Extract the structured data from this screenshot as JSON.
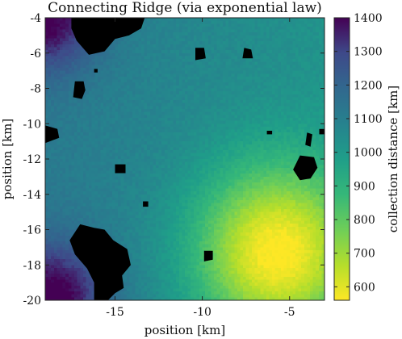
{
  "chart_data": {
    "type": "heatmap",
    "title": "Connecting Ridge (via exponential law)",
    "xlabel": "position [km]",
    "ylabel": "position [km]",
    "xlim": [
      -19,
      -3
    ],
    "ylim": [
      -20,
      -4
    ],
    "x_ticks": [
      {
        "value": -15,
        "label": "-15"
      },
      {
        "value": -10,
        "label": "-10"
      },
      {
        "value": -5,
        "label": "-5"
      }
    ],
    "y_ticks": [
      {
        "value": -4,
        "label": "-4"
      },
      {
        "value": -6,
        "label": "-6"
      },
      {
        "value": -8,
        "label": "-8"
      },
      {
        "value": -10,
        "label": "-10"
      },
      {
        "value": -12,
        "label": "-12"
      },
      {
        "value": -14,
        "label": "-14"
      },
      {
        "value": -16,
        "label": "-16"
      },
      {
        "value": -18,
        "label": "-18"
      },
      {
        "value": -20,
        "label": "-20"
      }
    ],
    "colorbar": {
      "label": "collection distance [km]",
      "range": [
        560,
        1400
      ],
      "ticks": [
        {
          "value": 600,
          "label": "600"
        },
        {
          "value": 700,
          "label": "700"
        },
        {
          "value": 800,
          "label": "800"
        },
        {
          "value": 900,
          "label": "900"
        },
        {
          "value": 1000,
          "label": "1000"
        },
        {
          "value": 1100,
          "label": "1100"
        },
        {
          "value": 1200,
          "label": "1200"
        },
        {
          "value": 1300,
          "label": "1300"
        },
        {
          "value": 1400,
          "label": "1400"
        }
      ]
    },
    "field": {
      "background_km": 1070,
      "minimum": {
        "x": -5.8,
        "y": -17.3,
        "value_km": 580
      },
      "maxima": [
        {
          "x": -19.0,
          "y": -4.0,
          "value_km": 1380
        },
        {
          "x": -18.5,
          "y": -19.8,
          "value_km": 1390
        }
      ]
    },
    "missing_data_regions": [
      [
        [
          -17.5,
          -4.0
        ],
        [
          -13.3,
          -4.0
        ],
        [
          -13.5,
          -4.6
        ],
        [
          -14.2,
          -5.0
        ],
        [
          -15.0,
          -5.2
        ],
        [
          -15.6,
          -5.9
        ],
        [
          -16.5,
          -6.1
        ],
        [
          -17.2,
          -5.3
        ],
        [
          -17.5,
          -4.6
        ]
      ],
      [
        [
          -17.3,
          -7.6
        ],
        [
          -16.8,
          -7.6
        ],
        [
          -16.7,
          -8.1
        ],
        [
          -16.9,
          -8.6
        ],
        [
          -17.4,
          -8.5
        ]
      ],
      [
        [
          -19.0,
          -10.1
        ],
        [
          -18.3,
          -10.3
        ],
        [
          -18.2,
          -10.8
        ],
        [
          -19.0,
          -11.1
        ]
      ],
      [
        [
          -17.0,
          -15.7
        ],
        [
          -16.2,
          -15.9
        ],
        [
          -15.6,
          -16.0
        ],
        [
          -15.1,
          -16.6
        ],
        [
          -14.3,
          -17.1
        ],
        [
          -14.1,
          -18.0
        ],
        [
          -14.6,
          -18.6
        ],
        [
          -14.5,
          -19.3
        ],
        [
          -15.0,
          -19.6
        ],
        [
          -15.4,
          -20.0
        ],
        [
          -16.2,
          -20.0
        ],
        [
          -16.2,
          -19.0
        ],
        [
          -16.6,
          -18.2
        ],
        [
          -17.3,
          -17.4
        ],
        [
          -17.6,
          -16.6
        ]
      ],
      [
        [
          -15.0,
          -12.3
        ],
        [
          -14.4,
          -12.3
        ],
        [
          -14.4,
          -12.8
        ],
        [
          -15.0,
          -12.8
        ]
      ],
      [
        [
          -10.4,
          -5.7
        ],
        [
          -9.9,
          -5.7
        ],
        [
          -9.8,
          -6.3
        ],
        [
          -10.4,
          -6.4
        ]
      ],
      [
        [
          -7.6,
          -5.7
        ],
        [
          -7.2,
          -5.8
        ],
        [
          -7.1,
          -6.3
        ],
        [
          -7.7,
          -6.3
        ]
      ],
      [
        [
          -9.9,
          -17.2
        ],
        [
          -9.4,
          -17.2
        ],
        [
          -9.4,
          -17.7
        ],
        [
          -9.9,
          -17.8
        ]
      ],
      [
        [
          -4.4,
          -11.8
        ],
        [
          -3.6,
          -11.9
        ],
        [
          -3.4,
          -12.5
        ],
        [
          -3.8,
          -13.1
        ],
        [
          -4.4,
          -13.2
        ],
        [
          -4.8,
          -12.6
        ]
      ],
      [
        [
          -6.3,
          -10.4
        ],
        [
          -6.0,
          -10.4
        ],
        [
          -6.0,
          -10.6
        ],
        [
          -6.3,
          -10.6
        ]
      ],
      [
        [
          -4.0,
          -10.5
        ],
        [
          -3.7,
          -10.6
        ],
        [
          -3.8,
          -11.3
        ],
        [
          -4.1,
          -11.2
        ]
      ],
      [
        [
          -3.3,
          -10.3
        ],
        [
          -3.0,
          -10.3
        ],
        [
          -3.0,
          -10.6
        ],
        [
          -3.3,
          -10.6
        ]
      ],
      [
        [
          -16.2,
          -6.9
        ],
        [
          -16.0,
          -6.9
        ],
        [
          -16.0,
          -7.1
        ],
        [
          -16.2,
          -7.1
        ]
      ],
      [
        [
          -13.4,
          -14.4
        ],
        [
          -13.1,
          -14.4
        ],
        [
          -13.1,
          -14.7
        ],
        [
          -13.4,
          -14.7
        ]
      ]
    ]
  }
}
